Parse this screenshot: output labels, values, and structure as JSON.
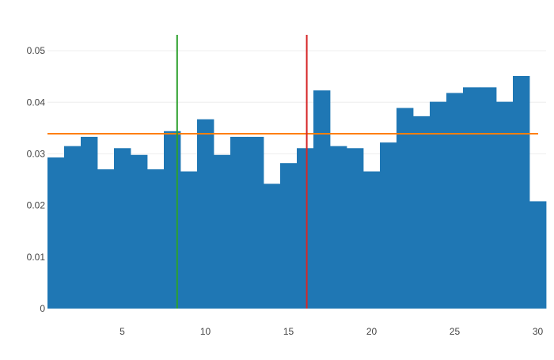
{
  "chart_data": {
    "type": "bar",
    "x": [
      1,
      2,
      3,
      4,
      5,
      6,
      7,
      8,
      9,
      10,
      11,
      12,
      13,
      14,
      15,
      16,
      17,
      18,
      19,
      20,
      21,
      22,
      23,
      24,
      25,
      26,
      27,
      28,
      29,
      30
    ],
    "values": [
      0.0293,
      0.0315,
      0.0333,
      0.027,
      0.0311,
      0.0298,
      0.027,
      0.0344,
      0.0266,
      0.0367,
      0.0298,
      0.0333,
      0.0333,
      0.0242,
      0.0282,
      0.0311,
      0.0423,
      0.0315,
      0.0311,
      0.0266,
      0.0322,
      0.0389,
      0.0373,
      0.0401,
      0.0418,
      0.0429,
      0.0429,
      0.0401,
      0.0451,
      0.0208
    ],
    "xlim": [
      0.5,
      30.5
    ],
    "ylim": [
      0,
      0.054
    ],
    "xticks": [
      5,
      10,
      15,
      20,
      25,
      30
    ],
    "yticks": [
      0,
      0.01,
      0.02,
      0.03,
      0.04,
      0.05
    ],
    "ytick_labels": [
      "0",
      "0.01",
      "0.02",
      "0.03",
      "0.04",
      "0.05"
    ],
    "grid": "horizontal",
    "reference_lines": [
      {
        "orientation": "horizontal",
        "value": 0.0339,
        "color": "#ff7f0e"
      },
      {
        "orientation": "vertical",
        "value": 8.3,
        "color": "#2ca02c"
      },
      {
        "orientation": "vertical",
        "value": 16.1,
        "color": "#d62728"
      }
    ],
    "colors": {
      "bar": "#1f77b4",
      "grid": "#eeeeee",
      "axis_text": "#444444"
    },
    "title": "",
    "xlabel": "",
    "ylabel": ""
  }
}
